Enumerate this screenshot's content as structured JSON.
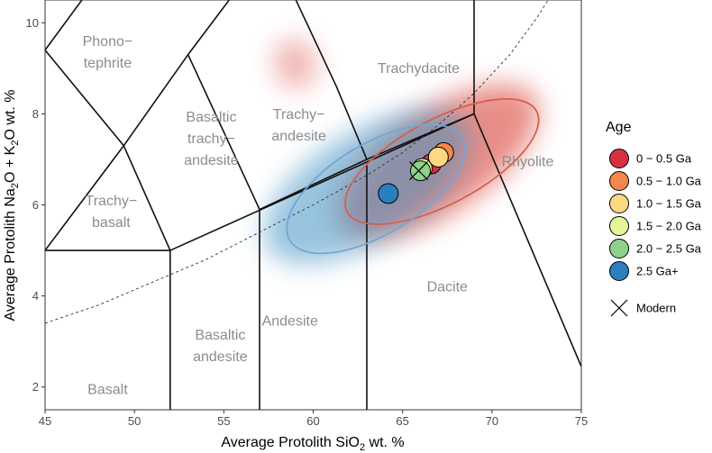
{
  "chart_data": {
    "type": "scatter",
    "xlabel_main": "Average Protolith SiO",
    "xlabel_sub": "2",
    "xlabel_tail": " wt. %",
    "ylabel_a": "Average Protolith Na",
    "ylabel_sub1": "2",
    "ylabel_b": "O + K",
    "ylabel_sub2": "2",
    "ylabel_c": "O  wt. %",
    "xlim": [
      45,
      75
    ],
    "ylim": [
      1.5,
      10.5
    ],
    "x_ticks": [
      45,
      50,
      55,
      60,
      65,
      70,
      75
    ],
    "y_ticks": [
      2,
      4,
      6,
      8,
      10
    ],
    "grid": false,
    "legend_position": "right",
    "legend_title": "Age",
    "fields": [
      {
        "name": "phono-tephrite-label",
        "lines": [
          "Phono−",
          "tephrite"
        ],
        "x": 48.5,
        "y": 9.35
      },
      {
        "name": "trachydacite-label",
        "lines": [
          "Trachydacite"
        ],
        "x": 65.9,
        "y": 9.0
      },
      {
        "name": "trachyandesite-label",
        "lines": [
          "Trachy−",
          "andesite"
        ],
        "x": 59.2,
        "y": 7.75
      },
      {
        "name": "basaltic-trachyandesite-label",
        "lines": [
          "Basaltic",
          "trachy−",
          "andesite"
        ],
        "x": 54.3,
        "y": 7.45
      },
      {
        "name": "rhyolite-label",
        "lines": [
          "Rhyolite"
        ],
        "x": 72.0,
        "y": 6.95
      },
      {
        "name": "trachybasalt-label",
        "lines": [
          "Trachy−",
          "basalt"
        ],
        "x": 48.7,
        "y": 5.85
      },
      {
        "name": "dacite-label",
        "lines": [
          "Dacite"
        ],
        "x": 67.5,
        "y": 4.2
      },
      {
        "name": "andesite-label",
        "lines": [
          "Andesite"
        ],
        "x": 58.7,
        "y": 3.45
      },
      {
        "name": "basaltic-andesite-label",
        "lines": [
          "Basaltic",
          "andesite"
        ],
        "x": 54.8,
        "y": 2.9
      },
      {
        "name": "basalt-label",
        "lines": [
          "Basalt"
        ],
        "x": 48.5,
        "y": 1.95
      }
    ],
    "boundaries": [
      [
        [
          45,
          5.0
        ],
        [
          52,
          5.0
        ]
      ],
      [
        [
          52,
          5.0
        ],
        [
          52,
          1.5
        ]
      ],
      [
        [
          57,
          5.9
        ],
        [
          57,
          1.5
        ]
      ],
      [
        [
          63,
          6.9
        ],
        [
          63,
          1.5
        ]
      ],
      [
        [
          52,
          5.0
        ],
        [
          69,
          8.0
        ]
      ],
      [
        [
          69,
          8.0
        ],
        [
          75,
          2.45
        ]
      ],
      [
        [
          45,
          5.0
        ],
        [
          49.4,
          7.3
        ]
      ],
      [
        [
          49.4,
          7.3
        ],
        [
          52,
          5.0
        ]
      ],
      [
        [
          49.4,
          7.3
        ],
        [
          53,
          9.3
        ]
      ],
      [
        [
          53,
          9.3
        ],
        [
          57,
          5.9
        ]
      ],
      [
        [
          53,
          9.3
        ],
        [
          57.6,
          11.7
        ]
      ],
      [
        [
          57,
          5.9
        ],
        [
          63,
          7.0
        ]
      ],
      [
        [
          63,
          7.0
        ],
        [
          69,
          8.0
        ]
      ],
      [
        [
          69,
          8.0
        ],
        [
          69,
          13.0
        ]
      ],
      [
        [
          63,
          7.0
        ],
        [
          61.3,
          8.6
        ]
      ],
      [
        [
          61.3,
          8.6
        ],
        [
          57.6,
          11.7
        ]
      ],
      [
        [
          49.4,
          7.3
        ],
        [
          45,
          9.4
        ]
      ],
      [
        [
          45,
          9.4
        ],
        [
          48,
          11.0
        ]
      ],
      [
        [
          52.5,
          14.0
        ],
        [
          48.4,
          11.5
        ]
      ]
    ],
    "alkaline_curve": [
      [
        45,
        3.4
      ],
      [
        48,
        3.8
      ],
      [
        51,
        4.3
      ],
      [
        54,
        4.8
      ],
      [
        57,
        5.4
      ],
      [
        60,
        6.0
      ],
      [
        63,
        6.65
      ],
      [
        65,
        7.15
      ],
      [
        67,
        7.75
      ],
      [
        69,
        8.45
      ],
      [
        71,
        9.3
      ],
      [
        72.5,
        10.1
      ],
      [
        73.3,
        10.6
      ]
    ],
    "ellipses": [
      {
        "name": "red",
        "color": "#d6604d",
        "cx": 67.2,
        "cy": 6.95,
        "a": 6.0,
        "b": 0.58,
        "angle_deg": -28
      },
      {
        "name": "blue",
        "color": "#6fa8d6",
        "cx": 63.5,
        "cy": 6.35,
        "a": 5.6,
        "b": 0.62,
        "angle_deg": -31
      }
    ],
    "density": [
      {
        "color": "#d73027",
        "cx": 67.0,
        "cy": 6.95,
        "a": 6.5,
        "b": 0.7,
        "angle_deg": -34,
        "opacity": 0.55
      },
      {
        "color": "#d73027",
        "cx": 59.0,
        "cy": 9.1,
        "a": 1.2,
        "b": 0.35,
        "angle_deg": -10,
        "opacity": 0.35
      },
      {
        "color": "#4393c3",
        "cx": 63.0,
        "cy": 6.4,
        "a": 6.5,
        "b": 0.75,
        "angle_deg": -32,
        "opacity": 0.55
      }
    ],
    "series": [
      {
        "name": "0 − 0.5 Ga",
        "color": "#d7303f",
        "x": 66.6,
        "y": 6.9
      },
      {
        "name": "0.5 − 1.0 Ga",
        "color": "#f4874b",
        "x": 67.3,
        "y": 7.15
      },
      {
        "name": "1.0 − 1.5 Ga",
        "color": "#fdd883",
        "x": 67.0,
        "y": 7.05
      },
      {
        "name": "1.5 − 2.0 Ga",
        "color": "#e6f598",
        "x": 66.1,
        "y": 6.8
      },
      {
        "name": "2.0 − 2.5 Ga",
        "color": "#8fd18b",
        "x": 66.0,
        "y": 6.75
      },
      {
        "name": "2.5 Ga+",
        "color": "#2a7fc1",
        "x": 64.2,
        "y": 6.25
      }
    ],
    "modern": {
      "name": "Modern",
      "x": 65.9,
      "y": 6.75
    }
  }
}
